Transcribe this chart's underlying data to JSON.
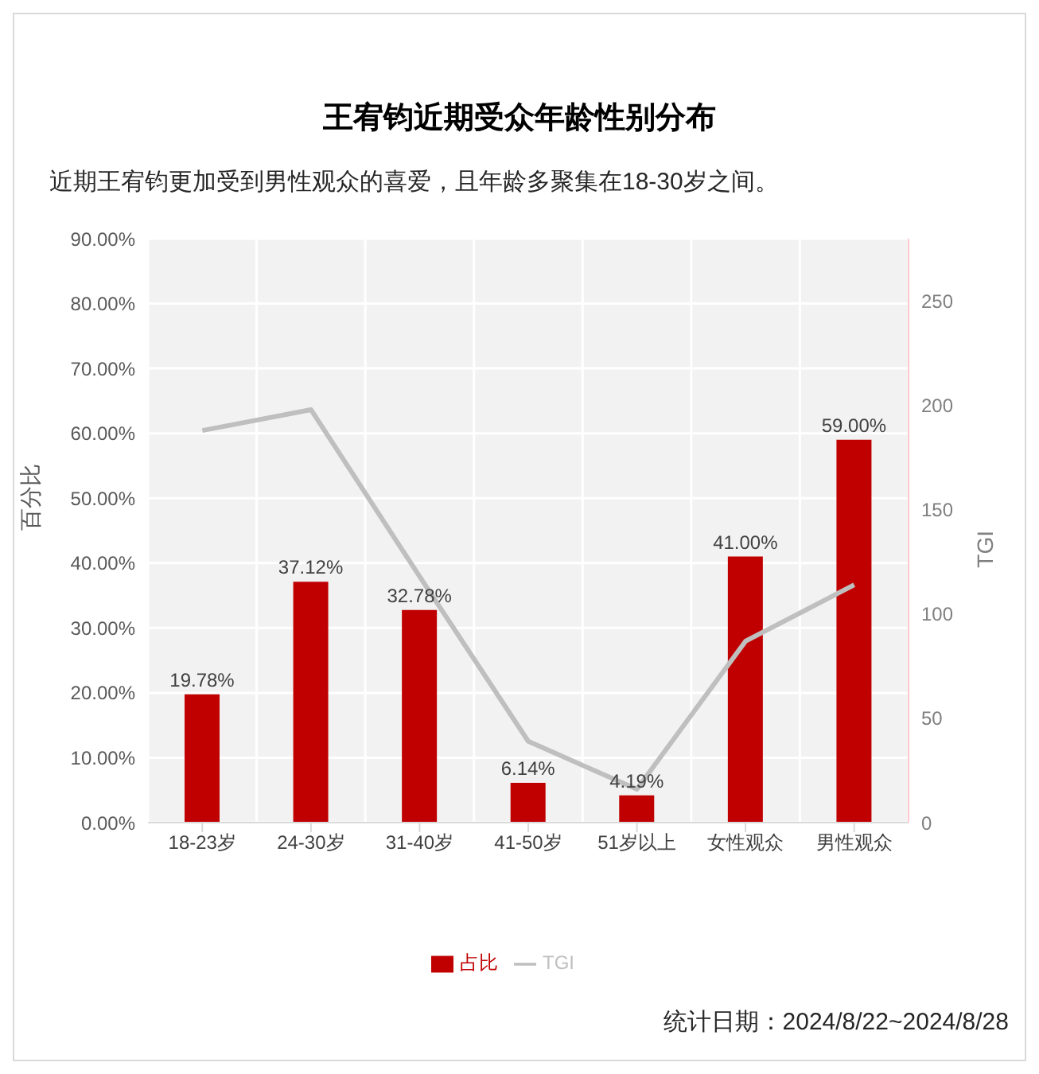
{
  "chart_data": {
    "type": "bar",
    "title": "王宥钧近期受众年龄性别分布",
    "subtitle": "近期王宥钧更加受到男性观众的喜爱，且年龄多聚集在18-30岁之间。",
    "ylabel": "百分比",
    "y2label": "TGI",
    "annotations": [
      "统计日期：2024/8/22~2024/8/28"
    ],
    "categories": [
      "18-23岁",
      "24-30岁",
      "31-40岁",
      "41-50岁",
      "51岁以上",
      "女性观众",
      "男性观众"
    ],
    "series": [
      {
        "name": "占比",
        "color": "#c00000",
        "values": [
          19.78,
          37.12,
          32.78,
          6.14,
          4.19,
          41.0,
          59.0
        ],
        "value_labels": [
          "19.78%",
          "37.12%",
          "32.78%",
          "6.14%",
          "4.19%",
          "41.00%",
          "59.00%"
        ]
      },
      {
        "name": "TGI",
        "type": "line",
        "axis": "y2",
        "color": "#bfbfbf",
        "values": [
          188,
          198,
          118,
          39,
          16,
          87,
          114
        ]
      }
    ],
    "ylim": [
      0,
      90
    ],
    "yticks": [
      {
        "value": 0,
        "label": "0.00%"
      },
      {
        "value": 10,
        "label": "10.00%"
      },
      {
        "value": 20,
        "label": "20.00%"
      },
      {
        "value": 30,
        "label": "30.00%"
      },
      {
        "value": 40,
        "label": "40.00%"
      },
      {
        "value": 50,
        "label": "50.00%"
      },
      {
        "value": 60,
        "label": "60.00%"
      },
      {
        "value": 70,
        "label": "70.00%"
      },
      {
        "value": 80,
        "label": "80.00%"
      },
      {
        "value": 90,
        "label": "90.00%"
      }
    ],
    "y2lim": [
      0,
      280
    ],
    "y2ticks": [
      0,
      50,
      100,
      150,
      200,
      250
    ],
    "grid": true,
    "legend": "bottom",
    "marker": "none",
    "line_style": "solid"
  }
}
